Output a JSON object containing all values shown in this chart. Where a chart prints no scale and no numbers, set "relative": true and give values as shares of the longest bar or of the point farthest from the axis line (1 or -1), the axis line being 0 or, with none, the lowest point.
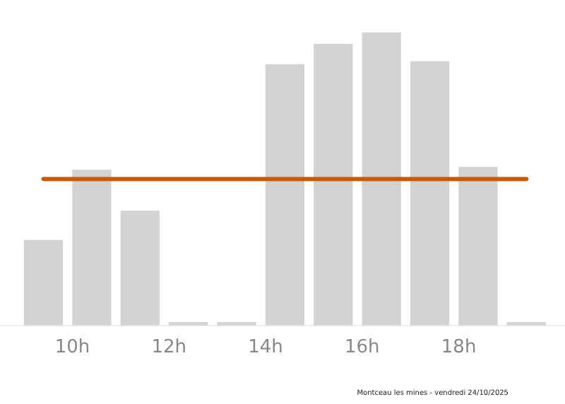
{
  "chart_data": {
    "type": "bar",
    "relative": true,
    "x": [
      9.4,
      10.4,
      11.4,
      12.4,
      13.4,
      14.4,
      15.4,
      16.4,
      17.4,
      18.4,
      19.4
    ],
    "values": [
      0.29,
      0.53,
      0.39,
      0.01,
      0.01,
      0.89,
      0.96,
      1,
      0.9,
      0.54,
      0.01
    ],
    "color": "#d3d3d3",
    "xlim": [
      8.5,
      20.2
    ],
    "xticks": [
      {
        "value": 10,
        "label": "10h"
      },
      {
        "value": 12,
        "label": "12h"
      },
      {
        "value": 14,
        "label": "14h"
      },
      {
        "value": 16,
        "label": "16h"
      },
      {
        "value": 18,
        "label": "18h"
      }
    ],
    "ref_lines": [
      {
        "axis": "y",
        "value": 0.5,
        "color": "#c55a11"
      }
    ],
    "annotations": [
      "Montceau les mines - vendredi 24/10/2025"
    ],
    "grid": false,
    "legend": false
  }
}
